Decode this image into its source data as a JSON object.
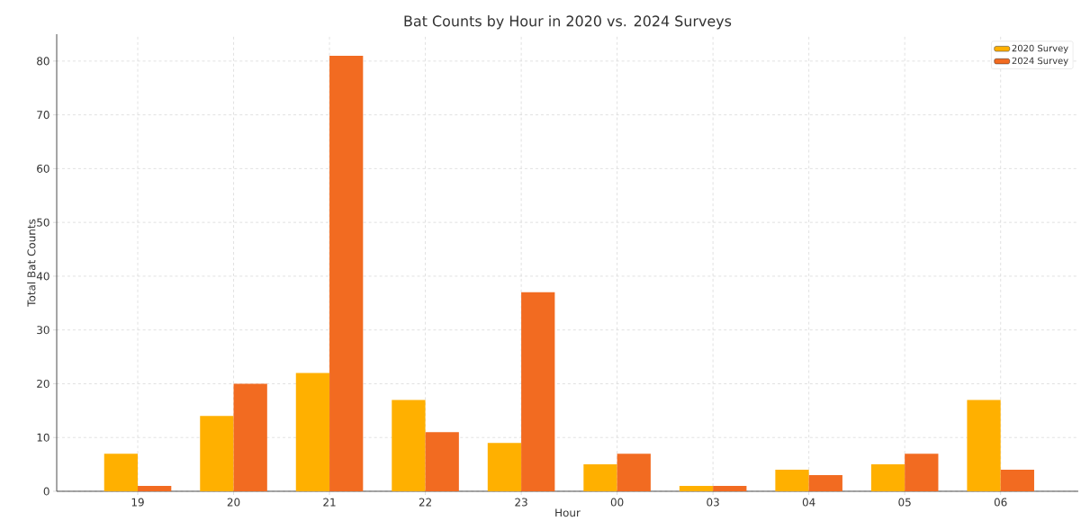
{
  "chart_data": {
    "type": "bar",
    "title": "Bat Counts by Hour in 2020 vs. 2024 Surveys",
    "xlabel": "Hour",
    "ylabel": "Total Bat Counts",
    "categories": [
      "19",
      "20",
      "21",
      "22",
      "23",
      "00",
      "03",
      "04",
      "05",
      "06"
    ],
    "series": [
      {
        "name": "2020 Survey",
        "color": "#ffb000",
        "values": [
          7,
          14,
          22,
          17,
          9,
          5,
          1,
          4,
          5,
          17
        ]
      },
      {
        "name": "2024 Survey",
        "color": "#f26b21",
        "values": [
          1,
          20,
          81,
          11,
          37,
          7,
          1,
          3,
          7,
          4
        ]
      }
    ],
    "ylim": [
      0,
      85
    ],
    "yticks": [
      0,
      10,
      20,
      30,
      40,
      50,
      60,
      70,
      80
    ],
    "grid": true,
    "legend": "top right"
  }
}
